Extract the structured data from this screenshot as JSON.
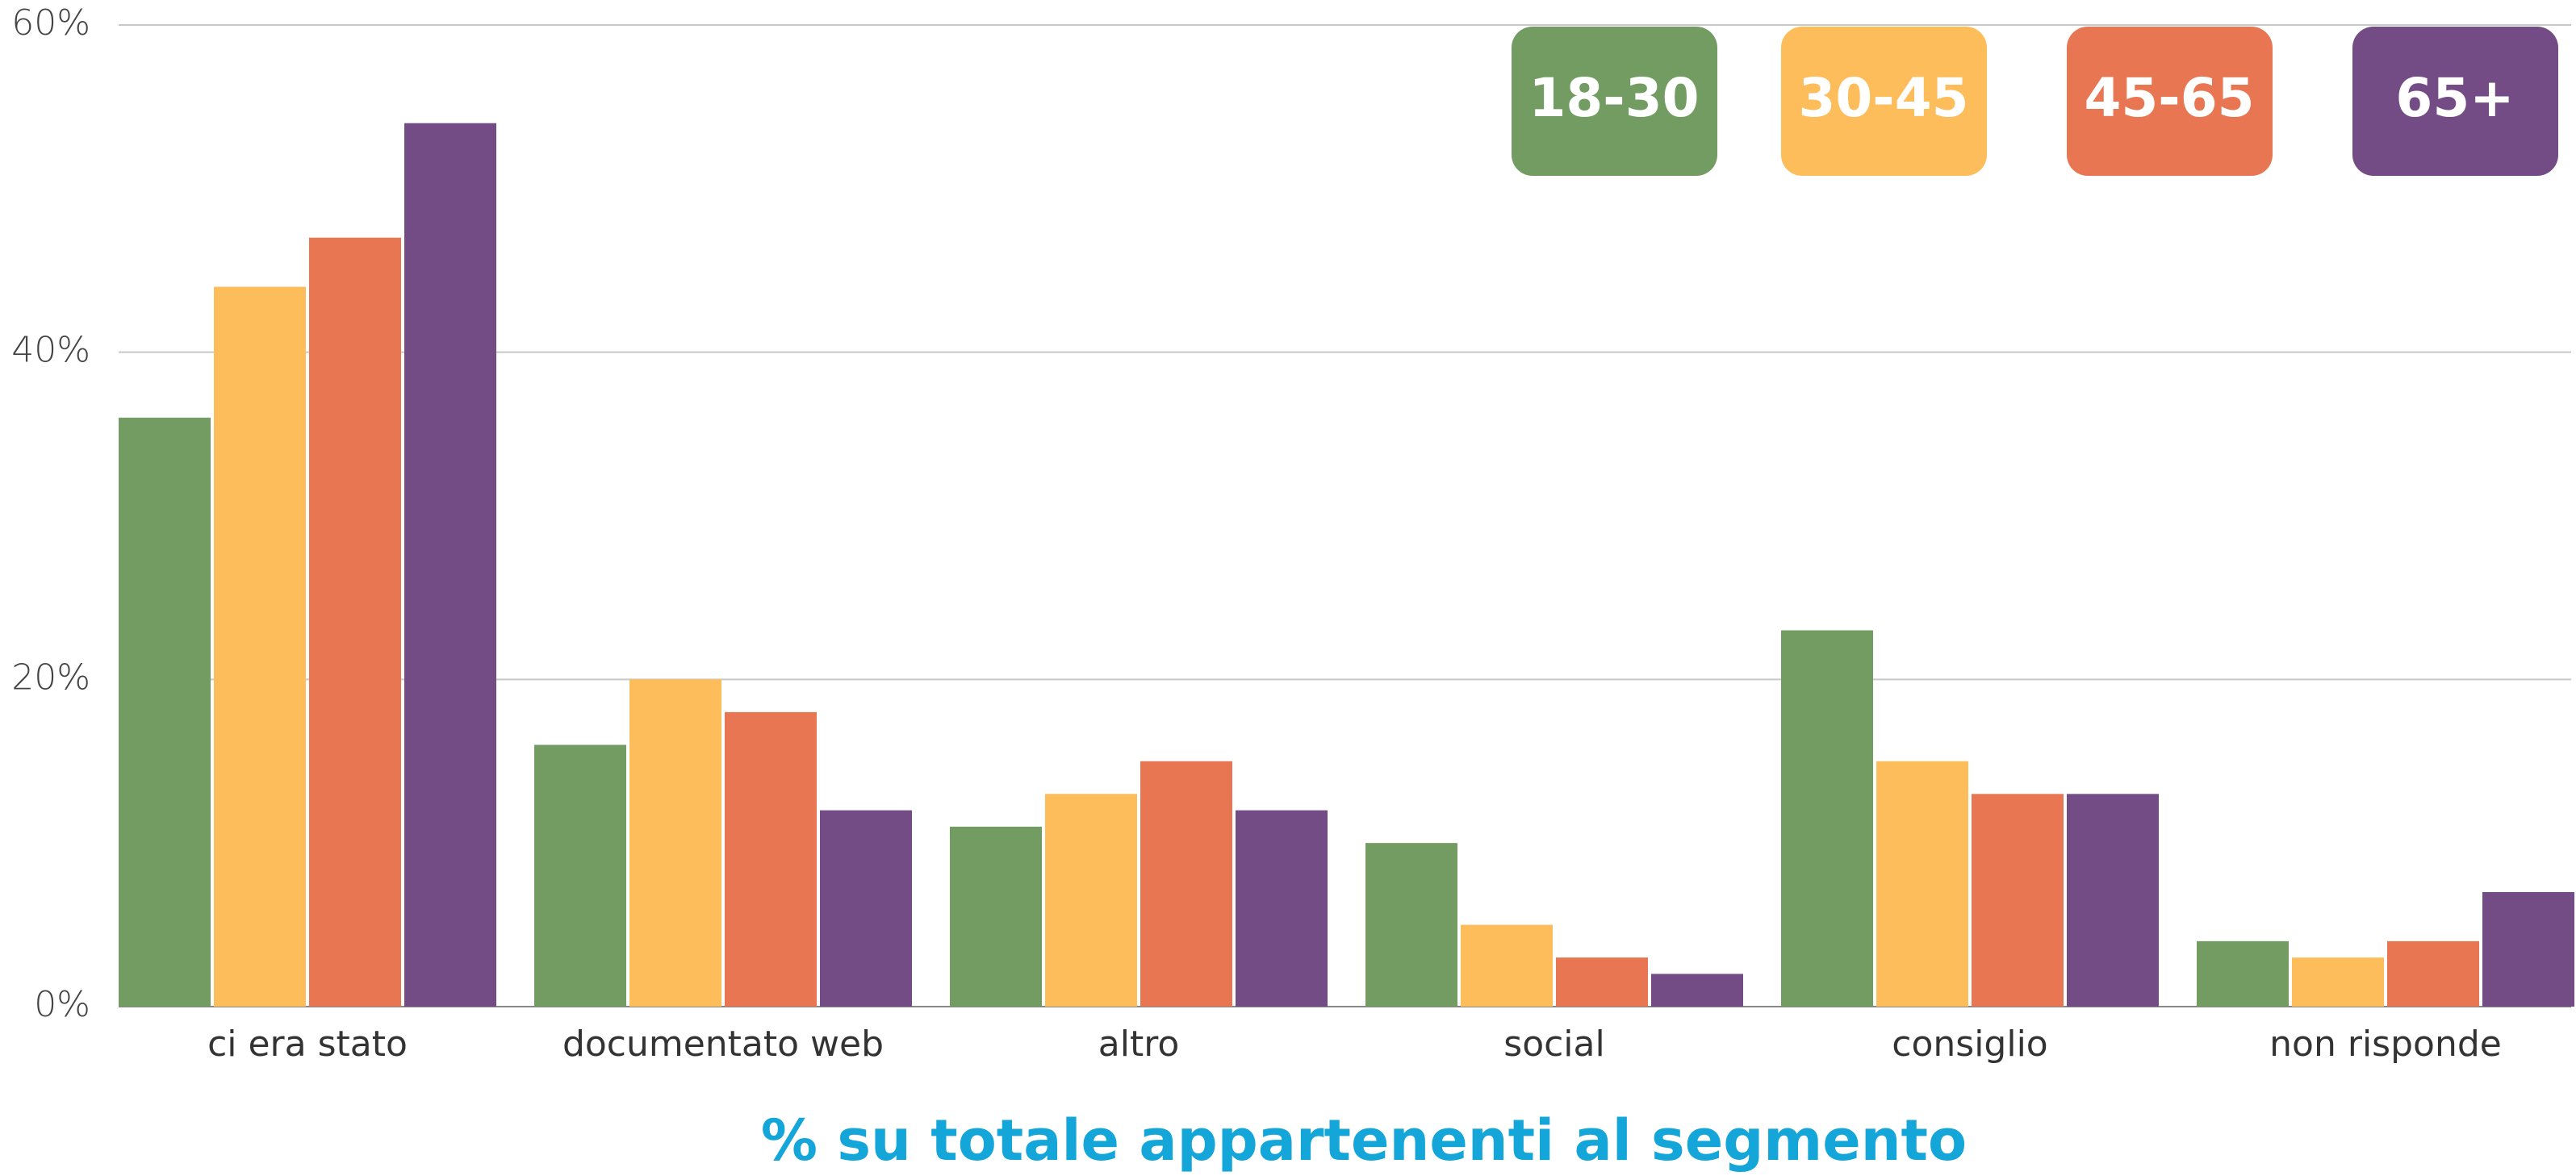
{
  "chart_data": {
    "type": "bar",
    "x_label": "% su totale appartenenti al segmento",
    "categories": [
      "ci era stato",
      "documentato web",
      "altro",
      "social",
      "consiglio",
      "non risponde"
    ],
    "series": [
      {
        "name": "18-30",
        "color": "#739c62",
        "values": [
          36,
          16,
          11,
          10,
          23,
          4
        ]
      },
      {
        "name": "30-45",
        "color": "#fdbd5b",
        "values": [
          44,
          20,
          13,
          5,
          15,
          3
        ]
      },
      {
        "name": "45-65",
        "color": "#e97652",
        "values": [
          47,
          18,
          15,
          3,
          13,
          4
        ]
      },
      {
        "name": "65+",
        "color": "#734c85",
        "values": [
          54,
          12,
          12,
          2,
          13,
          7
        ]
      }
    ],
    "ylim": [
      0,
      60
    ],
    "yticks": [
      {
        "value": 0,
        "label": "0%"
      },
      {
        "value": 20,
        "label": "20%"
      },
      {
        "value": 40,
        "label": "40%"
      },
      {
        "value": 60,
        "label": "60%"
      }
    ],
    "grid": true,
    "legend": "top-right"
  }
}
